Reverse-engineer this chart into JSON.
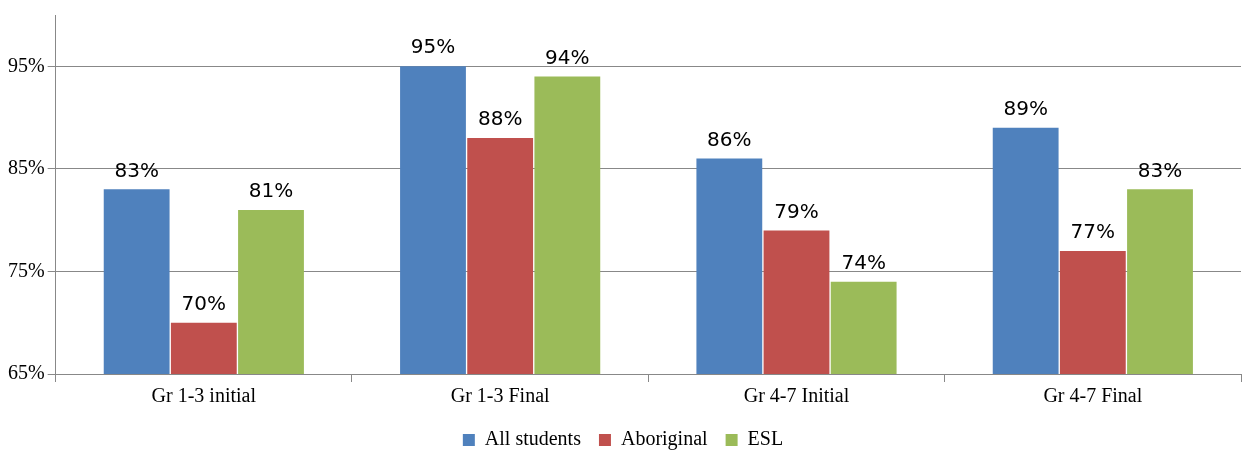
{
  "chart_data": {
    "type": "bar",
    "categories": [
      "Gr 1-3 initial",
      "Gr 1-3 Final",
      "Gr 4-7 Initial",
      "Gr 4-7 Final"
    ],
    "series": [
      {
        "name": "All students",
        "color": "#4f81bd",
        "values": [
          83,
          95,
          86,
          89
        ],
        "value_labels": [
          "83%",
          "95%",
          "86%",
          "89%"
        ]
      },
      {
        "name": "Aboriginal",
        "color": "#c0504d",
        "values": [
          70,
          88,
          79,
          77
        ],
        "value_labels": [
          "70%",
          "88%",
          "79%",
          "77%"
        ]
      },
      {
        "name": "ESL",
        "color": "#9bbb59",
        "values": [
          81,
          94,
          74,
          83
        ],
        "value_labels": [
          "81%",
          "94%",
          "74%",
          "83%"
        ]
      }
    ],
    "ylim": [
      65,
      100
    ],
    "yticks": [
      {
        "value": 65,
        "label": "65%"
      },
      {
        "value": 75,
        "label": "75%"
      },
      {
        "value": 85,
        "label": "85%"
      },
      {
        "value": 95,
        "label": "95%"
      }
    ],
    "grid": "y",
    "legend": "bottom"
  }
}
